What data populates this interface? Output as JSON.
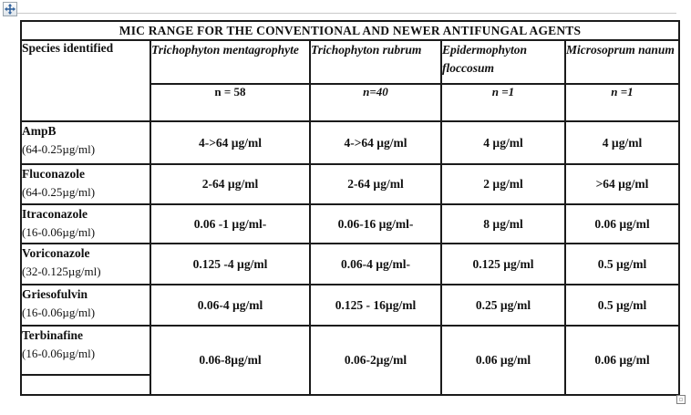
{
  "icons": {
    "move_handle": "move-arrows-icon",
    "resize_handle": "resize-square-icon",
    "move_arrow_color": "#2d5f9b"
  },
  "table": {
    "title": "MIC RANGE FOR THE CONVENTIONAL AND NEWER ANTIFUNGAL AGENTS",
    "corner_header": "Species identified",
    "columns": [
      {
        "name": "Trichophyton mentagrophyte",
        "n": "n = 58"
      },
      {
        "name": "Trichophyton rubrum",
        "n": "n=40"
      },
      {
        "name": "Epidermophyton floccosum",
        "n": "n =1"
      },
      {
        "name": "Microsoprum nanum",
        "n": "n =1"
      }
    ],
    "rows": [
      {
        "drug": "AmpB",
        "dilution": "(64-0.25µg/ml)",
        "values": [
          "4->64 µg/ml",
          "4->64 µg/ml",
          "4 µg/ml",
          "4 µg/ml"
        ]
      },
      {
        "drug": "Fluconazole",
        "dilution": "(64-0.25µg/ml)",
        "values": [
          "2-64 µg/ml",
          "2-64 µg/ml",
          "2 µg/ml",
          ">64 µg/ml"
        ]
      },
      {
        "drug": "Itraconazole",
        "dilution": "(16-0.06µg/ml)",
        "values": [
          "0.06 -1 µg/ml-",
          "0.06-16 µg/ml-",
          "8 µg/ml",
          "0.06 µg/ml"
        ]
      },
      {
        "drug": "Voriconazole",
        "dilution": "(32-0.125µg/ml)",
        "values": [
          "0.125 -4 µg/ml",
          "0.06-4 µg/ml-",
          "0.125 µg/ml",
          "0.5 µg/ml"
        ]
      },
      {
        "drug": "Griesofulvin",
        "dilution": "(16-0.06µg/ml)",
        "values": [
          "0.06-4 µg/ml",
          "0.125 - 16µg/ml",
          "0.25 µg/ml",
          "0.5 µg/ml"
        ]
      },
      {
        "drug": "Terbinafine",
        "dilution": "(16-0.06µg/ml)",
        "values": [
          "0.06-8µg/ml",
          "0.06-2µg/ml",
          "0.06 µg/ml",
          "0.06 µg/ml"
        ],
        "split_name_cell": true
      }
    ]
  }
}
